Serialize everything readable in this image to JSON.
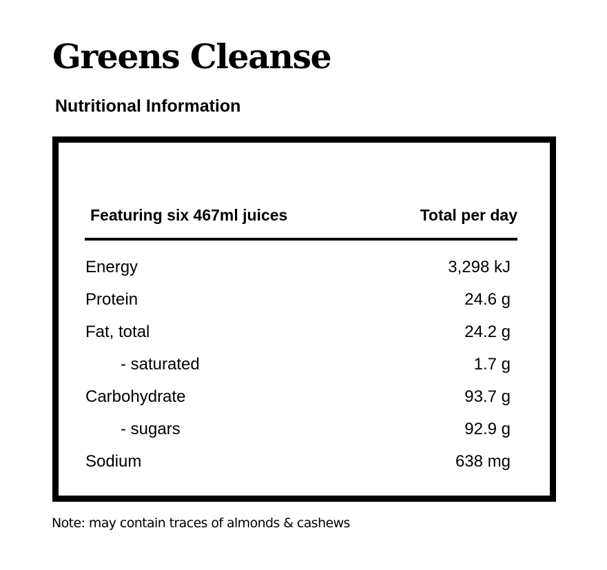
{
  "title": "Greens Cleanse",
  "subtitle": "Nutritional Information",
  "table": {
    "header": {
      "left": "Featuring six 467ml juices",
      "right": "Total per day"
    },
    "rows": [
      {
        "label": "Energy",
        "value": "3,298 kJ",
        "indent": false
      },
      {
        "label": "Protein",
        "value": "24.6 g",
        "indent": false
      },
      {
        "label": "Fat, total",
        "value": "24.2 g",
        "indent": false
      },
      {
        "label": "- saturated",
        "value": "1.7 g",
        "indent": true
      },
      {
        "label": "Carbohydrate",
        "value": "93.7 g",
        "indent": false
      },
      {
        "label": "- sugars",
        "value": "92.9 g",
        "indent": true
      },
      {
        "label": "Sodium",
        "value": "638 mg",
        "indent": false
      }
    ]
  },
  "note": "Note: may contain traces of almonds & cashews"
}
